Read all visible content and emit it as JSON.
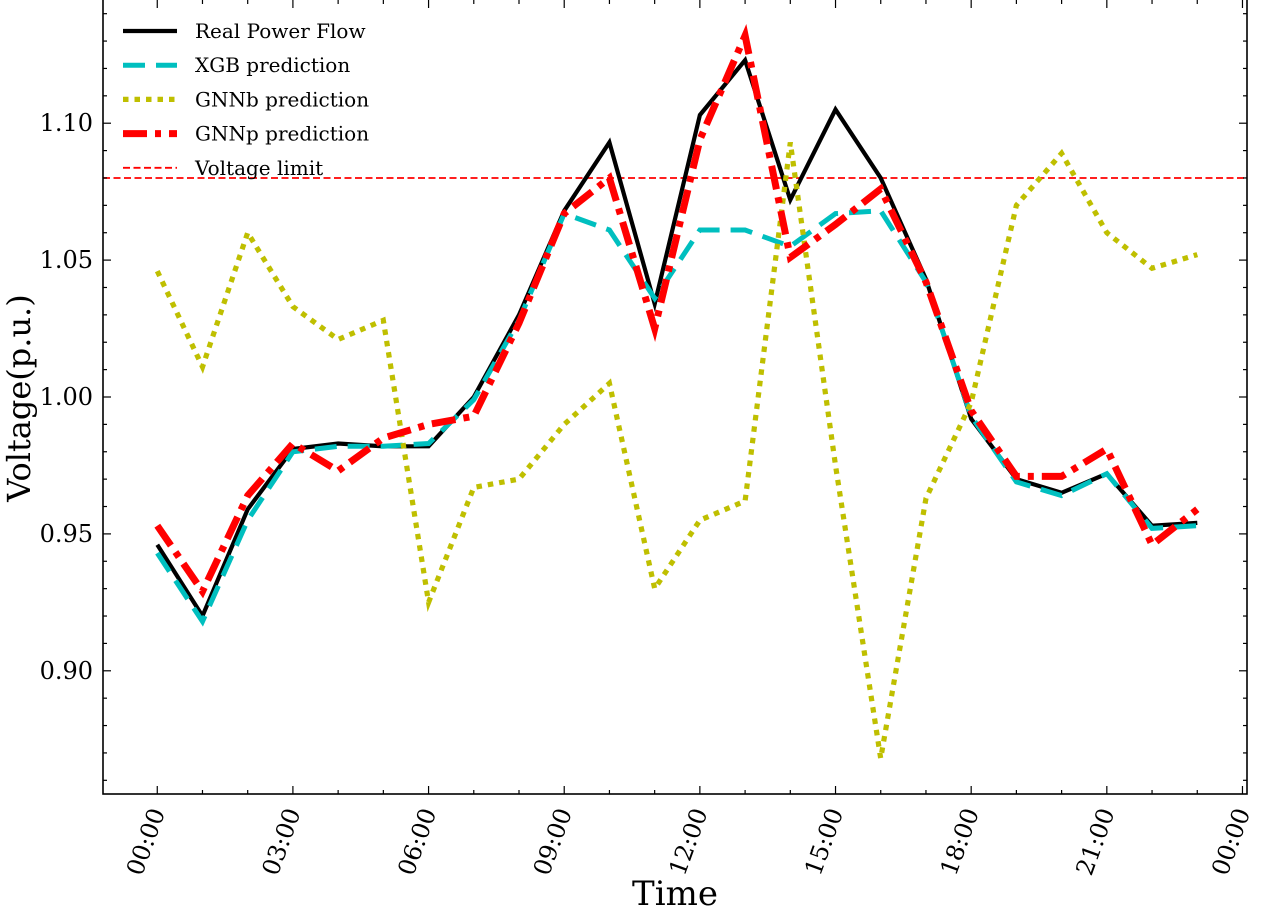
{
  "chart_data": {
    "type": "line",
    "title": "",
    "xlabel": "Time",
    "ylabel": "Voltage(p.u.)",
    "x": [
      0,
      1,
      2,
      3,
      4,
      5,
      6,
      7,
      8,
      9,
      10,
      11,
      12,
      13,
      14,
      15,
      16,
      17,
      18,
      19,
      20,
      21,
      22,
      23
    ],
    "xlim": [
      -1.2,
      24.1
    ],
    "ylim": [
      0.855,
      1.145
    ],
    "x_ticks": [
      0,
      3,
      6,
      9,
      12,
      15,
      18,
      21,
      24
    ],
    "x_tick_labels": [
      "00:00",
      "03:00",
      "06:00",
      "09:00",
      "12:00",
      "15:00",
      "18:00",
      "21:00",
      "00:00"
    ],
    "y_ticks": [
      0.9,
      0.95,
      1.0,
      1.05,
      1.1
    ],
    "y_tick_labels": [
      "0.90",
      "0.95",
      "1.00",
      "1.05",
      "1.10"
    ],
    "grid": false,
    "legend_position": "top-left",
    "series": [
      {
        "name": "Real Power Flow",
        "color": "#000000",
        "style": "solid",
        "values": [
          0.946,
          0.92,
          0.959,
          0.981,
          0.983,
          0.982,
          0.982,
          1.0,
          1.03,
          1.068,
          1.093,
          1.034,
          1.103,
          1.123,
          1.072,
          1.105,
          1.08,
          1.043,
          0.992,
          0.97,
          0.965,
          0.972,
          0.953,
          0.954
        ]
      },
      {
        "name": "XGB prediction",
        "color": "#00bfbf",
        "style": "dashed",
        "values": [
          0.943,
          0.918,
          0.955,
          0.98,
          0.982,
          0.982,
          0.983,
          0.999,
          1.028,
          1.067,
          1.061,
          1.036,
          1.061,
          1.061,
          1.055,
          1.067,
          1.068,
          1.042,
          0.993,
          0.969,
          0.964,
          0.972,
          0.952,
          0.953
        ]
      },
      {
        "name": "GNNb prediction",
        "color": "#bfbf00",
        "style": "dotted",
        "values": [
          1.046,
          1.011,
          1.06,
          1.033,
          1.021,
          1.028,
          0.925,
          0.967,
          0.97,
          0.99,
          1.005,
          0.93,
          0.955,
          0.962,
          1.093,
          0.975,
          0.868,
          0.963,
          0.998,
          1.07,
          1.089,
          1.06,
          1.047,
          1.052
        ]
      },
      {
        "name": "GNNp prediction",
        "color": "#ff0000",
        "style": "dashdot",
        "values": [
          0.953,
          0.929,
          0.964,
          0.983,
          0.973,
          0.985,
          0.99,
          0.993,
          1.027,
          1.067,
          1.08,
          1.025,
          1.094,
          1.132,
          1.051,
          1.063,
          1.076,
          1.042,
          0.995,
          0.971,
          0.971,
          0.981,
          0.946,
          0.959
        ]
      }
    ],
    "reference_lines": [
      {
        "name": "Voltage limit",
        "orientation": "horizontal",
        "value": 1.08,
        "color": "#ff0000",
        "style": "dashed"
      }
    ]
  }
}
